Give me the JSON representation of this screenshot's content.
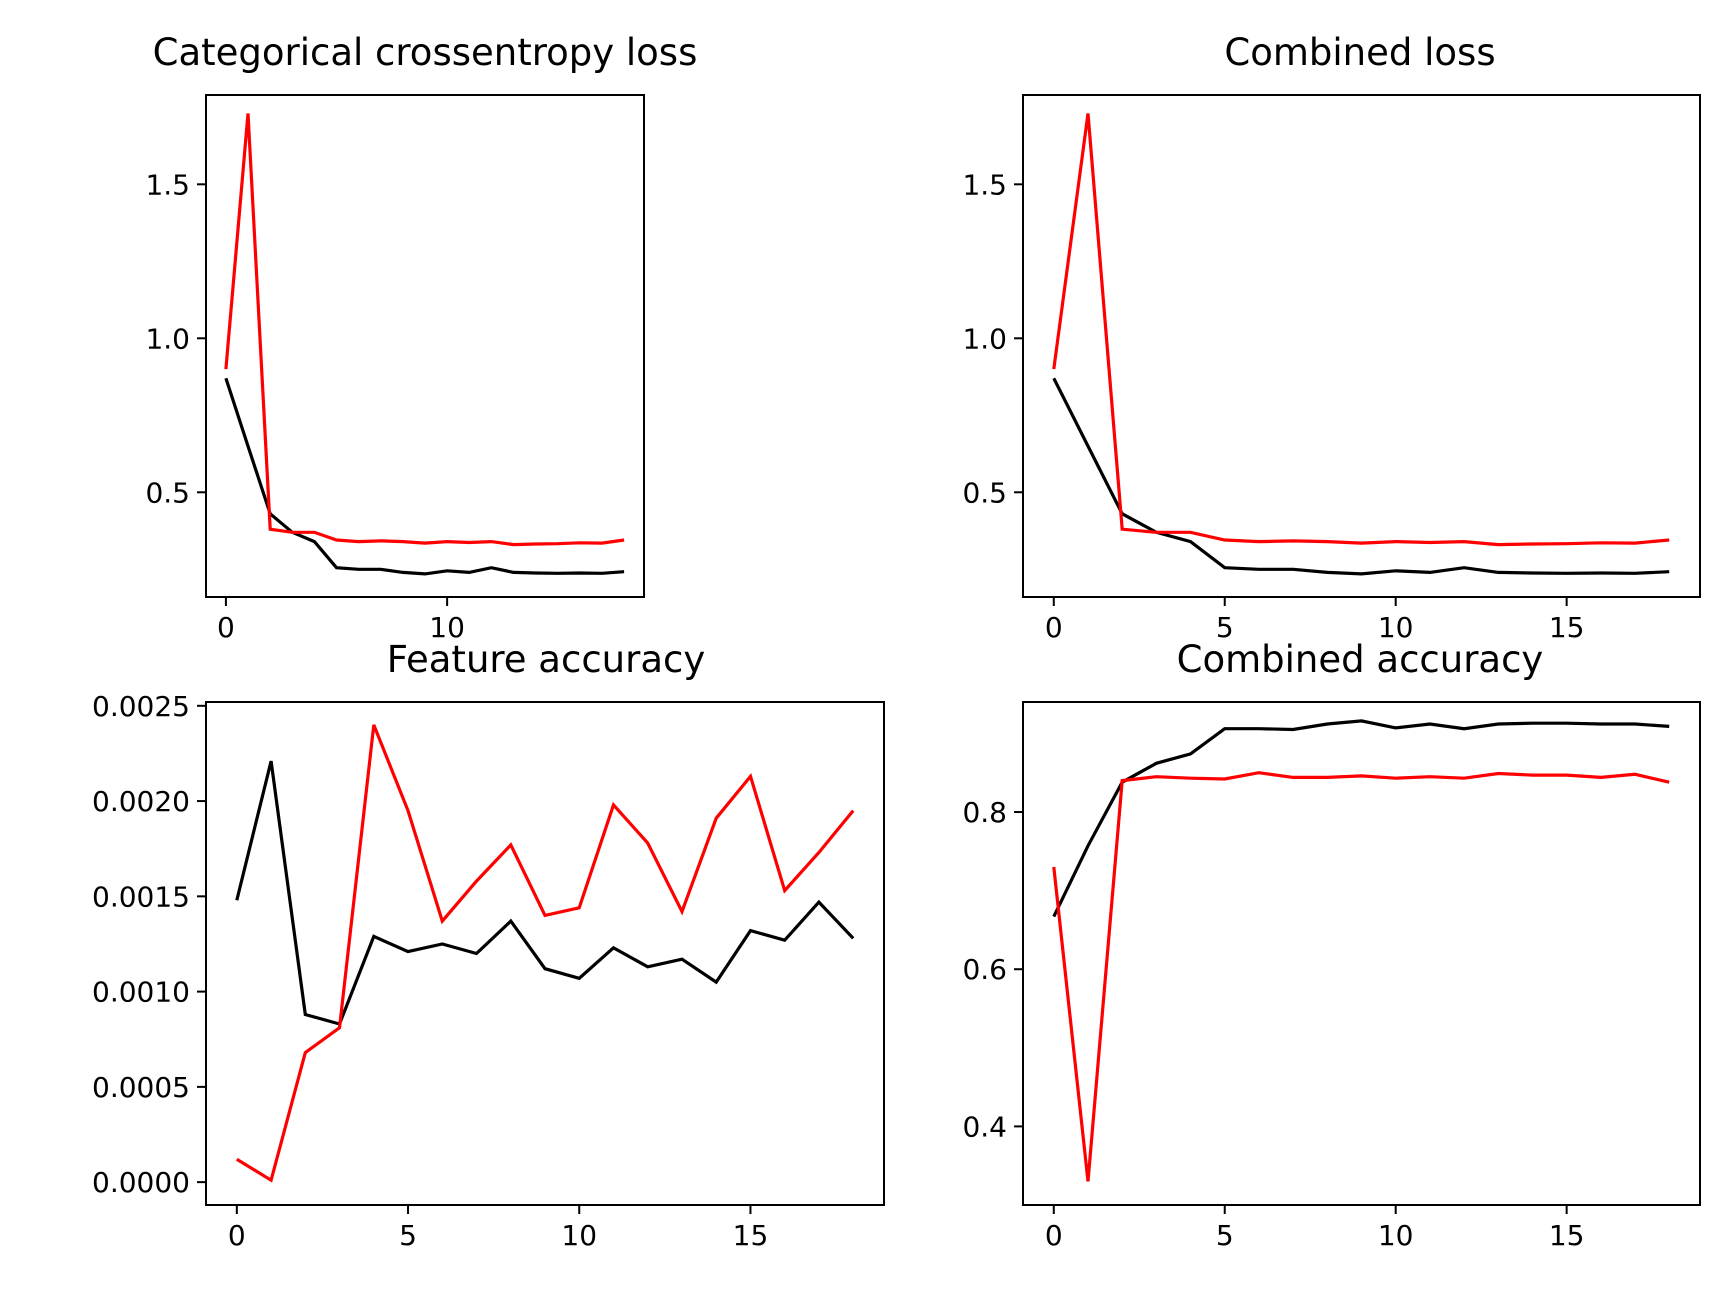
{
  "colors": {
    "series_a": "#000000",
    "series_b": "#ff0000"
  },
  "chart_data": [
    {
      "type": "line",
      "title": "Categorical crossentropy loss",
      "xlabel": "",
      "ylabel": "",
      "x": [
        0,
        1,
        2,
        3,
        4,
        5,
        6,
        7,
        8,
        9,
        10,
        11,
        12,
        13,
        14,
        15,
        16,
        17,
        18
      ],
      "xlim": [
        -0.9,
        18.9
      ],
      "ylim": [
        0.16,
        1.79
      ],
      "xticks": [
        0,
        10
      ],
      "yticks": [
        0.5,
        1.0,
        1.5
      ],
      "grid": false,
      "series": [
        {
          "color": "#000000",
          "values": [
            0.87,
            0.65,
            0.43,
            0.37,
            0.34,
            0.255,
            0.25,
            0.25,
            0.24,
            0.235,
            0.245,
            0.24,
            0.255,
            0.24,
            0.238,
            0.237,
            0.238,
            0.237,
            0.242
          ]
        },
        {
          "color": "#ff0000",
          "values": [
            0.9,
            1.73,
            0.38,
            0.37,
            0.37,
            0.345,
            0.34,
            0.342,
            0.34,
            0.335,
            0.34,
            0.337,
            0.34,
            0.33,
            0.332,
            0.333,
            0.336,
            0.335,
            0.345
          ]
        }
      ]
    },
    {
      "type": "line",
      "title": "Combined loss",
      "xlabel": "",
      "ylabel": "",
      "x": [
        0,
        1,
        2,
        3,
        4,
        5,
        6,
        7,
        8,
        9,
        10,
        11,
        12,
        13,
        14,
        15,
        16,
        17,
        18
      ],
      "xlim": [
        -0.9,
        18.9
      ],
      "ylim": [
        0.16,
        1.79
      ],
      "xticks": [
        0,
        5,
        10,
        15
      ],
      "yticks": [
        0.5,
        1.0,
        1.5
      ],
      "grid": false,
      "series": [
        {
          "color": "#000000",
          "values": [
            0.87,
            0.65,
            0.43,
            0.37,
            0.34,
            0.255,
            0.25,
            0.25,
            0.24,
            0.235,
            0.245,
            0.24,
            0.255,
            0.24,
            0.238,
            0.237,
            0.238,
            0.237,
            0.242
          ]
        },
        {
          "color": "#ff0000",
          "values": [
            0.9,
            1.73,
            0.38,
            0.37,
            0.37,
            0.345,
            0.34,
            0.342,
            0.34,
            0.335,
            0.34,
            0.337,
            0.34,
            0.33,
            0.332,
            0.333,
            0.336,
            0.335,
            0.345
          ]
        }
      ]
    },
    {
      "type": "line",
      "title": "Feature accuracy",
      "xlabel": "",
      "ylabel": "",
      "x": [
        0,
        1,
        2,
        3,
        4,
        5,
        6,
        7,
        8,
        9,
        10,
        11,
        12,
        13,
        14,
        15,
        16,
        17,
        18
      ],
      "xlim": [
        -0.9,
        18.9
      ],
      "ylim": [
        -0.00012,
        0.00252
      ],
      "xticks": [
        0,
        5,
        10,
        15
      ],
      "yticks": [
        0.0,
        0.0005,
        0.001,
        0.0015,
        0.002,
        0.0025
      ],
      "yticklabels": [
        "0.0000",
        "0.0005",
        "0.0010",
        "0.0015",
        "0.0020",
        "0.0025"
      ],
      "grid": false,
      "series": [
        {
          "color": "#000000",
          "values": [
            0.00148,
            0.00221,
            0.00088,
            0.00083,
            0.00129,
            0.00121,
            0.00125,
            0.0012,
            0.00137,
            0.00112,
            0.00107,
            0.00123,
            0.00113,
            0.00117,
            0.00105,
            0.00132,
            0.00127,
            0.00147,
            0.00128
          ]
        },
        {
          "color": "#ff0000",
          "values": [
            0.00012,
            1e-05,
            0.00068,
            0.00081,
            0.0024,
            0.00195,
            0.00137,
            0.00158,
            0.00177,
            0.0014,
            0.00144,
            0.00198,
            0.00178,
            0.00142,
            0.00191,
            0.00213,
            0.00153,
            0.00173,
            0.00195
          ]
        }
      ]
    },
    {
      "type": "line",
      "title": "Combined accuracy",
      "xlabel": "",
      "ylabel": "",
      "x": [
        0,
        1,
        2,
        3,
        4,
        5,
        6,
        7,
        8,
        9,
        10,
        11,
        12,
        13,
        14,
        15,
        16,
        17,
        18
      ],
      "xlim": [
        -0.9,
        18.9
      ],
      "ylim": [
        0.3,
        0.94
      ],
      "xticks": [
        0,
        5,
        10,
        15
      ],
      "yticks": [
        0.4,
        0.6,
        0.8
      ],
      "grid": false,
      "series": [
        {
          "color": "#000000",
          "values": [
            0.667,
            0.757,
            0.838,
            0.862,
            0.874,
            0.906,
            0.906,
            0.905,
            0.912,
            0.916,
            0.907,
            0.912,
            0.906,
            0.912,
            0.913,
            0.913,
            0.912,
            0.912,
            0.909
          ]
        },
        {
          "color": "#ff0000",
          "values": [
            0.73,
            0.33,
            0.84,
            0.845,
            0.843,
            0.842,
            0.85,
            0.844,
            0.844,
            0.846,
            0.843,
            0.845,
            0.843,
            0.849,
            0.847,
            0.847,
            0.844,
            0.848,
            0.838
          ]
        }
      ]
    }
  ]
}
